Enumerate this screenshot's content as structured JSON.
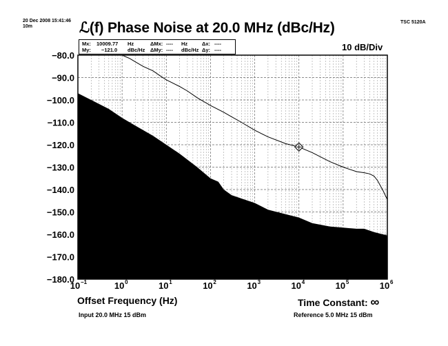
{
  "header": {
    "date_line": "20 Dec 2008 15:41:46",
    "duration": "10m",
    "instrument": "TSC 5120A"
  },
  "marker": {
    "mx_label": "Mx:",
    "mx_value": "10009.77",
    "mx_unit": "Hz",
    "my_label": "My:",
    "my_value": "−121.0",
    "my_unit": "dBc/Hz",
    "dmx_label": "ΔMx:",
    "dmx_value": "----",
    "dmx_unit": "Hz",
    "dmy_label": "ΔMy:",
    "dmy_value": "----",
    "dmy_unit": "dBc/Hz",
    "dx_label": "Δx:",
    "dx_value": "----",
    "dy_label": "Δy:",
    "dy_value": "----"
  },
  "footer": {
    "time_constant_label": "Time Constant:",
    "time_constant_value": "∞",
    "input_info": "Input 20.0 MHz 15 dBm",
    "reference_info": "Reference 5.0 MHz 15 dBm"
  },
  "chart_data": {
    "type": "line",
    "title": "ℒ(f) Phase Noise at 20.0 MHz (dBc/Hz)",
    "scale_label": "10 dB/Div",
    "xlabel": "Offset Frequency (Hz)",
    "ylabel": "",
    "x_scale": "log",
    "xlim": [
      0.1,
      1000000
    ],
    "ylim": [
      -180,
      -80
    ],
    "x_ticks": [
      {
        "value": 0.1,
        "mantissa": "10",
        "exponent": "−1"
      },
      {
        "value": 1,
        "mantissa": "10",
        "exponent": "0"
      },
      {
        "value": 10,
        "mantissa": "10",
        "exponent": "1"
      },
      {
        "value": 100,
        "mantissa": "10",
        "exponent": "2"
      },
      {
        "value": 1000,
        "mantissa": "10",
        "exponent": "3"
      },
      {
        "value": 10000,
        "mantissa": "10",
        "exponent": "4"
      },
      {
        "value": 100000,
        "mantissa": "10",
        "exponent": "5"
      },
      {
        "value": 1000000,
        "mantissa": "10",
        "exponent": "6"
      }
    ],
    "y_ticks": [
      {
        "value": -80,
        "label": "−80.0"
      },
      {
        "value": -90,
        "label": "−90.0"
      },
      {
        "value": -100,
        "label": "−100.0"
      },
      {
        "value": -110,
        "label": "−110.0"
      },
      {
        "value": -120,
        "label": "−120.0"
      },
      {
        "value": -130,
        "label": "−130.0"
      },
      {
        "value": -140,
        "label": "−140.0"
      },
      {
        "value": -150,
        "label": "−150.0"
      },
      {
        "value": -160,
        "label": "−160.0"
      },
      {
        "value": -170,
        "label": "−170.0"
      },
      {
        "value": -180,
        "label": "−180.0"
      }
    ],
    "grid": true,
    "series": [
      {
        "role": "phase-noise-trace",
        "color": "#000000",
        "x": [
          1,
          1.5,
          2,
          3,
          5,
          7,
          10,
          20,
          30,
          50,
          100,
          200,
          300,
          500,
          1000,
          2000,
          5000,
          10000,
          20000,
          50000,
          100000,
          200000,
          300000,
          400000,
          500000,
          600000,
          800000,
          1000000
        ],
        "y": [
          -80,
          -81.5,
          -83,
          -85,
          -87,
          -89,
          -91,
          -94,
          -96,
          -99,
          -102.5,
          -105.5,
          -107.5,
          -110,
          -113.5,
          -116.5,
          -119.5,
          -121,
          -123.5,
          -127.5,
          -130,
          -132,
          -132.5,
          -133,
          -134,
          -136,
          -140.5,
          -144.5
        ]
      },
      {
        "role": "noise-floor",
        "color": "#000000",
        "fill": true,
        "x": [
          0.1,
          0.2,
          0.5,
          1,
          2,
          5,
          10,
          20,
          50,
          100,
          150,
          200,
          300,
          500,
          1000,
          2000,
          5000,
          10000,
          20000,
          50000,
          100000,
          200000,
          300000,
          500000,
          1000000
        ],
        "y": [
          -97,
          -100,
          -104,
          -108,
          -111.5,
          -116,
          -120,
          -124,
          -130,
          -135,
          -136.5,
          -140,
          -142.5,
          -144,
          -146,
          -149,
          -151,
          -152.5,
          -155,
          -156.5,
          -157,
          -157.5,
          -157.5,
          -159,
          -160.5
        ]
      }
    ],
    "marker_point": {
      "x": 10009.77,
      "y": -121.0
    }
  }
}
